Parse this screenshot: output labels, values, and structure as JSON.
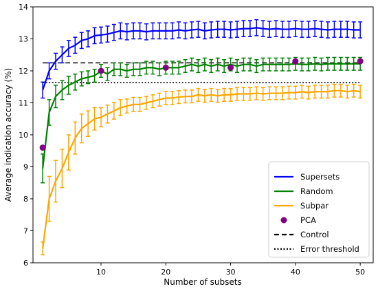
{
  "chart_data": {
    "type": "line",
    "xlabel": "Number of subsets",
    "ylabel": "Average indication accuracy (%)",
    "xlim": [
      -0.5,
      52
    ],
    "ylim": [
      6,
      14
    ],
    "x_ticks": [
      10,
      20,
      30,
      40,
      50
    ],
    "y_ticks": [
      6,
      7,
      8,
      9,
      10,
      11,
      12,
      13,
      14
    ],
    "grid": false,
    "legend_position": "lower right",
    "x": [
      1,
      2,
      3,
      4,
      5,
      6,
      7,
      8,
      9,
      10,
      11,
      12,
      13,
      14,
      15,
      16,
      17,
      18,
      19,
      20,
      21,
      22,
      23,
      24,
      25,
      26,
      27,
      28,
      29,
      30,
      31,
      32,
      33,
      34,
      35,
      36,
      37,
      38,
      39,
      40,
      41,
      42,
      43,
      44,
      45,
      46,
      47,
      48,
      49,
      50
    ],
    "series": [
      {
        "name": "Supersets",
        "color": "#0000ff",
        "style": "solid",
        "values": [
          11.4,
          12.0,
          12.3,
          12.5,
          12.7,
          12.8,
          12.95,
          13.0,
          13.1,
          13.12,
          13.15,
          13.2,
          13.25,
          13.22,
          13.25,
          13.25,
          13.22,
          13.25,
          13.25,
          13.25,
          13.25,
          13.28,
          13.25,
          13.28,
          13.3,
          13.25,
          13.28,
          13.3,
          13.3,
          13.28,
          13.3,
          13.32,
          13.32,
          13.35,
          13.32,
          13.3,
          13.32,
          13.3,
          13.3,
          13.32,
          13.3,
          13.3,
          13.32,
          13.3,
          13.28,
          13.3,
          13.3,
          13.3,
          13.28,
          13.28
        ],
        "errors": [
          0.25,
          0.25,
          0.25,
          0.25,
          0.25,
          0.25,
          0.25,
          0.25,
          0.25,
          0.25,
          0.25,
          0.25,
          0.25,
          0.25,
          0.25,
          0.25,
          0.25,
          0.25,
          0.25,
          0.25,
          0.25,
          0.25,
          0.25,
          0.25,
          0.25,
          0.25,
          0.25,
          0.25,
          0.25,
          0.25,
          0.25,
          0.25,
          0.25,
          0.25,
          0.25,
          0.25,
          0.25,
          0.25,
          0.25,
          0.25,
          0.25,
          0.25,
          0.25,
          0.25,
          0.25,
          0.25,
          0.25,
          0.25,
          0.25,
          0.25
        ]
      },
      {
        "name": "Random",
        "color": "#008000",
        "style": "solid",
        "values": [
          8.95,
          10.7,
          11.2,
          11.4,
          11.55,
          11.65,
          11.75,
          11.8,
          11.85,
          12.0,
          11.9,
          12.05,
          12.05,
          12.0,
          12.05,
          12.05,
          12.1,
          12.1,
          12.05,
          12.1,
          12.1,
          12.1,
          12.15,
          12.2,
          12.15,
          12.2,
          12.15,
          12.2,
          12.15,
          12.2,
          12.15,
          12.2,
          12.2,
          12.15,
          12.2,
          12.2,
          12.2,
          12.2,
          12.2,
          12.22,
          12.2,
          12.2,
          12.22,
          12.2,
          12.22,
          12.22,
          12.22,
          12.22,
          12.22,
          12.22
        ],
        "errors": [
          0.45,
          0.4,
          0.35,
          0.3,
          0.28,
          0.25,
          0.22,
          0.2,
          0.2,
          0.2,
          0.2,
          0.2,
          0.2,
          0.2,
          0.2,
          0.2,
          0.2,
          0.2,
          0.2,
          0.2,
          0.2,
          0.2,
          0.2,
          0.2,
          0.2,
          0.2,
          0.2,
          0.2,
          0.2,
          0.2,
          0.2,
          0.2,
          0.2,
          0.2,
          0.2,
          0.2,
          0.2,
          0.2,
          0.2,
          0.2,
          0.2,
          0.2,
          0.2,
          0.2,
          0.2,
          0.2,
          0.2,
          0.2,
          0.2,
          0.2
        ]
      },
      {
        "name": "Subpar",
        "color": "#ffa500",
        "style": "solid",
        "values": [
          6.45,
          8.0,
          8.55,
          8.95,
          9.45,
          9.9,
          10.2,
          10.35,
          10.5,
          10.55,
          10.65,
          10.75,
          10.85,
          10.9,
          10.95,
          10.95,
          11.0,
          11.05,
          11.1,
          11.15,
          11.15,
          11.18,
          11.2,
          11.2,
          11.25,
          11.22,
          11.25,
          11.22,
          11.25,
          11.25,
          11.28,
          11.28,
          11.28,
          11.3,
          11.28,
          11.3,
          11.3,
          11.3,
          11.32,
          11.32,
          11.35,
          11.32,
          11.35,
          11.35,
          11.35,
          11.38,
          11.38,
          11.35,
          11.38,
          11.35
        ],
        "errors": [
          0.2,
          0.7,
          0.65,
          0.6,
          0.55,
          0.5,
          0.45,
          0.4,
          0.35,
          0.3,
          0.28,
          0.26,
          0.25,
          0.22,
          0.22,
          0.22,
          0.2,
          0.2,
          0.2,
          0.2,
          0.2,
          0.2,
          0.2,
          0.2,
          0.2,
          0.2,
          0.2,
          0.2,
          0.2,
          0.2,
          0.2,
          0.2,
          0.2,
          0.2,
          0.2,
          0.2,
          0.2,
          0.2,
          0.2,
          0.2,
          0.2,
          0.2,
          0.2,
          0.2,
          0.2,
          0.2,
          0.2,
          0.2,
          0.2,
          0.2
        ]
      }
    ],
    "pca": {
      "name": "PCA",
      "color": "#800080",
      "points": [
        {
          "x": 1,
          "y": 9.6
        },
        {
          "x": 10,
          "y": 12.0
        },
        {
          "x": 20,
          "y": 12.1
        },
        {
          "x": 30,
          "y": 12.1
        },
        {
          "x": 40,
          "y": 12.3
        },
        {
          "x": 50,
          "y": 12.3
        }
      ]
    },
    "reference_lines": [
      {
        "name": "Control",
        "y": 12.25,
        "style": "dashed",
        "color": "#000000",
        "x_range": [
          1,
          50
        ]
      },
      {
        "name": "Error threshold",
        "y": 11.63,
        "style": "dotted",
        "color": "#000000",
        "x_range": [
          1,
          50
        ]
      }
    ],
    "legend": [
      "Supersets",
      "Random",
      "Subpar",
      "PCA",
      "Control",
      "Error threshold"
    ]
  }
}
